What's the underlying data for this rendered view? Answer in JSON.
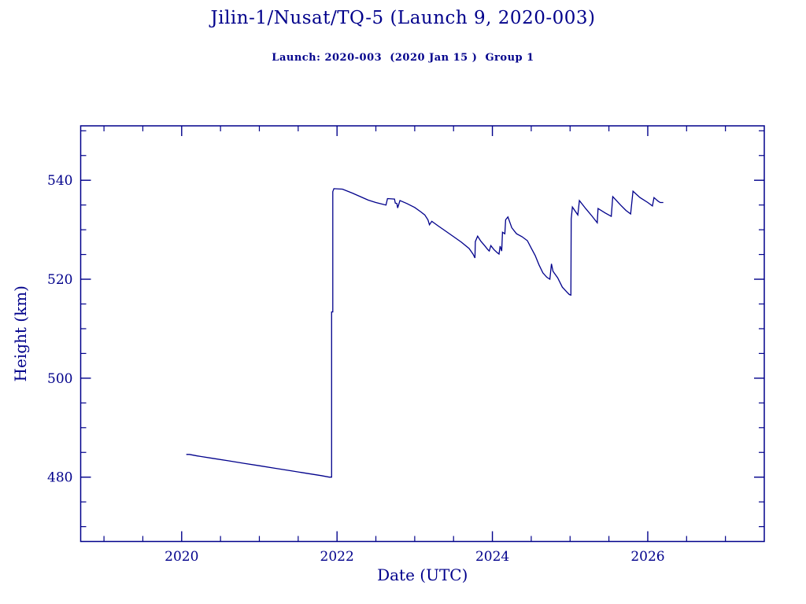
{
  "header": {
    "title": "Jilin-1/Nusat/TQ-5 (Launch 9, 2020-003)",
    "subtitle": "Launch: 2020-003  (2020 Jan 15 )  Group 1"
  },
  "colors": {
    "ink": "#00008b",
    "background": "#ffffff"
  },
  "chart_data": {
    "type": "line",
    "title": "Jilin-1/Nusat/TQ-5 (Launch 9, 2020-003)",
    "subtitle": "Launch: 2020-003  (2020 Jan 15 )  Group 1",
    "xlabel": "Date (UTC)",
    "ylabel": "Height (km)",
    "xlim": [
      2018.7,
      2027.5
    ],
    "ylim": [
      467.0,
      551.0
    ],
    "x_major_ticks": [
      2020,
      2022,
      2024,
      2026
    ],
    "x_minor_step": 0.5,
    "y_major_ticks": [
      480,
      500,
      520,
      540
    ],
    "y_minor_step": 5,
    "grid": false,
    "legend": "none",
    "series": [
      {
        "name": "height-km",
        "points": [
          [
            2020.06,
            484.6
          ],
          [
            2020.1,
            484.6
          ],
          [
            2020.2,
            484.3
          ],
          [
            2020.4,
            483.8
          ],
          [
            2020.6,
            483.3
          ],
          [
            2020.8,
            482.8
          ],
          [
            2021.0,
            482.3
          ],
          [
            2021.2,
            481.8
          ],
          [
            2021.4,
            481.3
          ],
          [
            2021.6,
            480.8
          ],
          [
            2021.8,
            480.3
          ],
          [
            2021.9,
            480.0
          ],
          [
            2021.93,
            480.0
          ],
          [
            2021.93,
            513.4
          ],
          [
            2021.945,
            513.4
          ],
          [
            2021.945,
            537.7
          ],
          [
            2021.96,
            538.3
          ],
          [
            2022.07,
            538.2
          ],
          [
            2022.2,
            537.4
          ],
          [
            2022.3,
            536.7
          ],
          [
            2022.4,
            536.0
          ],
          [
            2022.5,
            535.5
          ],
          [
            2022.63,
            535.0
          ],
          [
            2022.65,
            536.3
          ],
          [
            2022.74,
            536.2
          ],
          [
            2022.75,
            535.4
          ],
          [
            2022.77,
            535.3
          ],
          [
            2022.78,
            534.4
          ],
          [
            2022.81,
            535.9
          ],
          [
            2022.9,
            535.3
          ],
          [
            2023.0,
            534.5
          ],
          [
            2023.08,
            533.6
          ],
          [
            2023.13,
            533.0
          ],
          [
            2023.17,
            532.0
          ],
          [
            2023.19,
            531.0
          ],
          [
            2023.22,
            531.7
          ],
          [
            2023.3,
            530.8
          ],
          [
            2023.4,
            529.7
          ],
          [
            2023.5,
            528.6
          ],
          [
            2023.6,
            527.5
          ],
          [
            2023.7,
            526.2
          ],
          [
            2023.75,
            525.1
          ],
          [
            2023.775,
            524.3
          ],
          [
            2023.78,
            527.6
          ],
          [
            2023.81,
            528.7
          ],
          [
            2023.85,
            527.7
          ],
          [
            2023.9,
            526.8
          ],
          [
            2023.94,
            526.0
          ],
          [
            2023.96,
            525.7
          ],
          [
            2023.98,
            526.8
          ],
          [
            2024.02,
            526.0
          ],
          [
            2024.06,
            525.4
          ],
          [
            2024.085,
            525.1
          ],
          [
            2024.1,
            526.7
          ],
          [
            2024.12,
            525.7
          ],
          [
            2024.13,
            529.5
          ],
          [
            2024.16,
            529.2
          ],
          [
            2024.17,
            532.0
          ],
          [
            2024.2,
            532.6
          ],
          [
            2024.25,
            530.4
          ],
          [
            2024.31,
            529.2
          ],
          [
            2024.38,
            528.6
          ],
          [
            2024.45,
            527.8
          ],
          [
            2024.5,
            526.3
          ],
          [
            2024.55,
            524.8
          ],
          [
            2024.6,
            522.9
          ],
          [
            2024.65,
            521.3
          ],
          [
            2024.7,
            520.4
          ],
          [
            2024.74,
            520.0
          ],
          [
            2024.76,
            523.1
          ],
          [
            2024.78,
            521.6
          ],
          [
            2024.84,
            520.3
          ],
          [
            2024.9,
            518.4
          ],
          [
            2024.96,
            517.4
          ],
          [
            2024.99,
            516.9
          ],
          [
            2025.01,
            516.8
          ],
          [
            2025.015,
            532.2
          ],
          [
            2025.03,
            534.6
          ],
          [
            2025.1,
            533.0
          ],
          [
            2025.12,
            535.9
          ],
          [
            2025.2,
            534.3
          ],
          [
            2025.28,
            532.8
          ],
          [
            2025.35,
            531.4
          ],
          [
            2025.36,
            534.3
          ],
          [
            2025.45,
            533.4
          ],
          [
            2025.53,
            532.7
          ],
          [
            2025.55,
            536.7
          ],
          [
            2025.65,
            535.0
          ],
          [
            2025.72,
            533.9
          ],
          [
            2025.78,
            533.2
          ],
          [
            2025.81,
            537.8
          ],
          [
            2025.9,
            536.5
          ],
          [
            2026.0,
            535.5
          ],
          [
            2026.06,
            534.8
          ],
          [
            2026.08,
            536.5
          ],
          [
            2026.13,
            535.8
          ],
          [
            2026.16,
            535.5
          ],
          [
            2026.2,
            535.5
          ]
        ]
      }
    ]
  }
}
